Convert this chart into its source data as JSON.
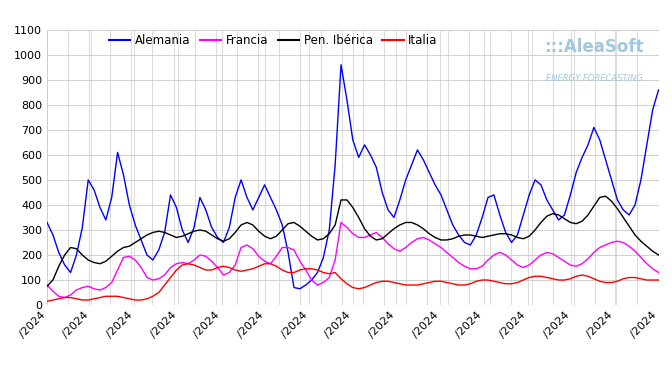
{
  "legend_entries": [
    "Alemania",
    "Francia",
    "Pen. Ibérica",
    "Italia"
  ],
  "line_colors": [
    "#0000ff",
    "#ff00ff",
    "#000000",
    "#ff0000"
  ],
  "ylim": [
    0,
    1100
  ],
  "yticks": [
    0,
    100,
    200,
    300,
    400,
    500,
    600,
    700,
    800,
    900,
    1000,
    1100
  ],
  "background_color": "#ffffff",
  "grid_color": "#cccccc",
  "aleasoft_color": "#a0c8e0",
  "n_points": 105,
  "n_xticks": 15,
  "xtick_label": "/2024",
  "alemania": [
    330,
    280,
    210,
    160,
    130,
    200,
    310,
    500,
    460,
    390,
    340,
    430,
    610,
    520,
    400,
    320,
    260,
    200,
    180,
    220,
    290,
    440,
    390,
    300,
    250,
    310,
    430,
    380,
    310,
    270,
    250,
    310,
    430,
    500,
    430,
    380,
    430,
    480,
    430,
    380,
    320,
    210,
    70,
    65,
    80,
    100,
    130,
    190,
    300,
    560,
    960,
    820,
    660,
    590,
    640,
    600,
    550,
    450,
    380,
    350,
    420,
    500,
    560,
    620,
    580,
    530,
    480,
    440,
    380,
    320,
    280,
    250,
    240,
    280,
    350,
    430,
    440,
    360,
    290,
    250,
    280,
    360,
    440,
    500,
    480,
    420,
    380,
    340,
    360,
    440,
    530,
    590,
    640,
    710,
    660,
    580,
    500,
    420,
    380,
    360,
    400,
    500,
    640,
    780,
    860
  ],
  "francia": [
    80,
    55,
    35,
    30,
    40,
    60,
    70,
    75,
    65,
    60,
    70,
    90,
    140,
    190,
    195,
    180,
    150,
    110,
    100,
    105,
    120,
    150,
    165,
    170,
    165,
    180,
    200,
    195,
    175,
    150,
    120,
    130,
    160,
    230,
    240,
    225,
    195,
    175,
    165,
    195,
    230,
    230,
    220,
    175,
    140,
    100,
    80,
    90,
    110,
    180,
    330,
    310,
    285,
    270,
    270,
    280,
    290,
    270,
    245,
    225,
    215,
    230,
    250,
    265,
    270,
    260,
    245,
    230,
    210,
    190,
    170,
    155,
    145,
    145,
    155,
    180,
    200,
    210,
    200,
    180,
    160,
    150,
    160,
    180,
    200,
    210,
    205,
    190,
    175,
    160,
    155,
    165,
    185,
    210,
    230,
    240,
    250,
    255,
    250,
    235,
    215,
    190,
    165,
    145,
    130
  ],
  "pen_iberica": [
    75,
    100,
    155,
    200,
    230,
    225,
    200,
    180,
    170,
    165,
    175,
    195,
    215,
    230,
    235,
    250,
    265,
    280,
    290,
    295,
    290,
    280,
    270,
    275,
    285,
    295,
    300,
    295,
    280,
    265,
    255,
    265,
    290,
    320,
    330,
    320,
    295,
    275,
    265,
    275,
    300,
    325,
    330,
    315,
    295,
    275,
    260,
    265,
    285,
    320,
    420,
    420,
    390,
    350,
    305,
    275,
    260,
    265,
    285,
    305,
    320,
    330,
    330,
    320,
    305,
    285,
    270,
    260,
    260,
    265,
    275,
    280,
    280,
    275,
    270,
    275,
    280,
    285,
    285,
    280,
    270,
    265,
    275,
    300,
    330,
    355,
    365,
    360,
    345,
    330,
    325,
    335,
    360,
    395,
    430,
    435,
    415,
    385,
    350,
    315,
    280,
    255,
    235,
    215,
    200
  ],
  "italia": [
    15,
    20,
    25,
    30,
    30,
    25,
    20,
    20,
    25,
    30,
    35,
    35,
    35,
    30,
    25,
    20,
    20,
    25,
    35,
    50,
    80,
    110,
    140,
    160,
    165,
    160,
    150,
    140,
    140,
    150,
    155,
    150,
    140,
    135,
    140,
    145,
    155,
    165,
    165,
    155,
    140,
    130,
    130,
    140,
    145,
    145,
    140,
    130,
    125,
    130,
    105,
    85,
    70,
    65,
    70,
    80,
    90,
    95,
    95,
    90,
    85,
    80,
    80,
    80,
    85,
    90,
    95,
    95,
    90,
    85,
    80,
    80,
    85,
    95,
    100,
    100,
    95,
    90,
    85,
    85,
    90,
    100,
    110,
    115,
    115,
    110,
    105,
    100,
    100,
    105,
    115,
    120,
    115,
    105,
    95,
    90,
    90,
    95,
    105,
    110,
    110,
    105,
    100,
    100,
    100
  ]
}
